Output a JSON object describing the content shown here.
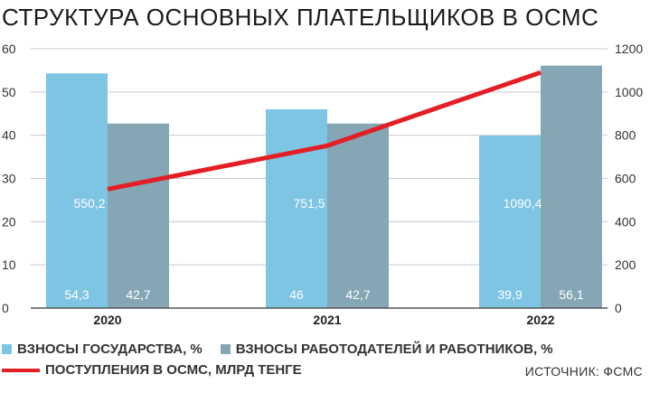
{
  "title": "СТРУКТУРА ОСНОВНЫХ ПЛАТЕЛЬЩИКОВ В ОСМС",
  "source": "ИСТОЧНИК: ФСМС",
  "chart_data": {
    "type": "bar",
    "categories": [
      "2020",
      "2021",
      "2022"
    ],
    "series": [
      {
        "name": "ВЗНОСЫ ГОСУДАРСТВА, %",
        "values": [
          54.3,
          46,
          39.9
        ],
        "labels": [
          "54,3",
          "46",
          "39,9"
        ],
        "color": "#7ec4e3",
        "axis": "left"
      },
      {
        "name": "ВЗНОСЫ РАБОТОДАТЕЛЕЙ И РАБОТНИКОВ, %",
        "values": [
          42.7,
          42.7,
          56.1
        ],
        "labels": [
          "42,7",
          "42,7",
          "56,1"
        ],
        "color": "#84a6b5",
        "axis": "left"
      },
      {
        "name": "ПОСТУПЛЕНИЯ В ОСМС, МЛРД ТЕНГЕ",
        "type": "line",
        "values": [
          550.2,
          751.5,
          1090.4
        ],
        "labels": [
          "550,2",
          "751,5",
          "1090,4"
        ],
        "color": "#e31e24",
        "axis": "right"
      }
    ],
    "y_left": {
      "min": 0,
      "max": 60,
      "ticks": [
        0,
        10,
        20,
        30,
        40,
        50,
        60
      ]
    },
    "y_right": {
      "min": 0,
      "max": 1200,
      "ticks": [
        0,
        200,
        400,
        600,
        800,
        1000,
        1200
      ]
    },
    "grid": true,
    "legend": "bottom"
  }
}
